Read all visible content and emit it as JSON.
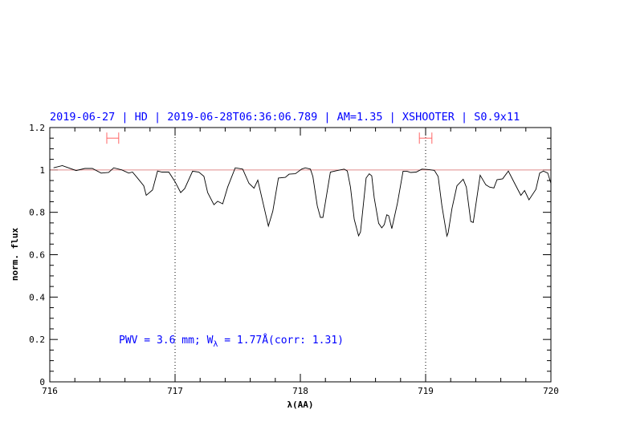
{
  "chart_data": {
    "type": "line",
    "title": "2019-06-27 | HD | 2019-06-28T06:36:06.789 | AM=1.35 | XSHOOTER | S0.9x11",
    "xlabel": "λ(AA)",
    "ylabel": "norm. flux",
    "xlim": [
      716,
      720
    ],
    "ylim": [
      0,
      1.2
    ],
    "x_ticks": [
      716,
      717,
      718,
      719,
      720
    ],
    "x_tick_labels": [
      "716",
      "717",
      "718",
      "719",
      "720"
    ],
    "y_ticks": [
      0,
      0.2,
      0.4,
      0.6,
      0.8,
      1,
      1.2
    ],
    "y_tick_labels": [
      "0",
      "0.2",
      "0.4",
      "0.6",
      "0.8",
      "1",
      "1.2"
    ],
    "grid": false,
    "annotation": {
      "pwv": "PWV = 3.6 mm; W",
      "sub": "λ",
      "rest": " = 1.77Å(corr: 1.31)"
    },
    "reference_line": 1.0,
    "vertical_markers": [
      717,
      719
    ],
    "ranges": [
      [
        716.455,
        716.55
      ],
      [
        718.95,
        719.05
      ]
    ],
    "colors": {
      "title": "#0000ff",
      "annotation": "#0000ff",
      "spectrum": "#000000",
      "range_bars": "#ff6666",
      "reference_line": "#e08a8a"
    },
    "series": [
      {
        "x": [
          716.03,
          716.1,
          716.21,
          716.28,
          716.34,
          716.41,
          716.47,
          716.51,
          716.575,
          716.63,
          716.66,
          716.7,
          716.75,
          716.77,
          716.82,
          716.86,
          716.895,
          716.95,
          717.0,
          717.045,
          717.077,
          717.14,
          717.19,
          717.23,
          717.26,
          717.31,
          717.34,
          717.38,
          717.42,
          717.48,
          717.54,
          717.59,
          717.63,
          717.66,
          717.745,
          717.78,
          717.825,
          717.88,
          717.91,
          717.96,
          718.01,
          718.04,
          718.08,
          718.1,
          718.135,
          718.16,
          718.18,
          718.24,
          718.295,
          718.35,
          718.375,
          718.4,
          718.43,
          718.465,
          718.48,
          718.525,
          718.55,
          718.57,
          718.59,
          718.625,
          718.65,
          718.67,
          718.69,
          718.705,
          718.73,
          718.775,
          718.82,
          718.85,
          718.88,
          718.925,
          718.97,
          719.02,
          719.07,
          719.1,
          719.13,
          719.17,
          719.18,
          719.21,
          719.25,
          719.3,
          719.325,
          719.36,
          719.38,
          719.435,
          719.48,
          719.51,
          719.545,
          719.57,
          719.615,
          719.66,
          719.71,
          719.76,
          719.79,
          719.825,
          719.88,
          719.91,
          719.94,
          719.975,
          720.0
        ],
        "y": [
          1.01,
          1.02,
          0.997,
          1.007,
          1.007,
          0.985,
          0.988,
          1.01,
          1.0,
          0.985,
          0.99,
          0.962,
          0.925,
          0.88,
          0.905,
          0.995,
          0.99,
          0.99,
          0.944,
          0.893,
          0.912,
          0.994,
          0.99,
          0.97,
          0.893,
          0.836,
          0.852,
          0.84,
          0.919,
          1.01,
          1.004,
          0.937,
          0.914,
          0.952,
          0.735,
          0.805,
          0.962,
          0.965,
          0.98,
          0.982,
          1.004,
          1.01,
          1.004,
          0.969,
          0.83,
          0.776,
          0.776,
          0.99,
          0.997,
          1.004,
          0.995,
          0.919,
          0.767,
          0.689,
          0.707,
          0.962,
          0.982,
          0.972,
          0.868,
          0.748,
          0.727,
          0.742,
          0.788,
          0.784,
          0.723,
          0.843,
          0.994,
          0.994,
          0.988,
          0.99,
          1.004,
          1.002,
          0.998,
          0.969,
          0.83,
          0.688,
          0.704,
          0.818,
          0.925,
          0.956,
          0.919,
          0.757,
          0.752,
          0.975,
          0.93,
          0.919,
          0.915,
          0.954,
          0.958,
          0.995,
          0.937,
          0.88,
          0.903,
          0.859,
          0.908,
          0.985,
          0.995,
          0.985,
          0.937
        ]
      }
    ]
  }
}
